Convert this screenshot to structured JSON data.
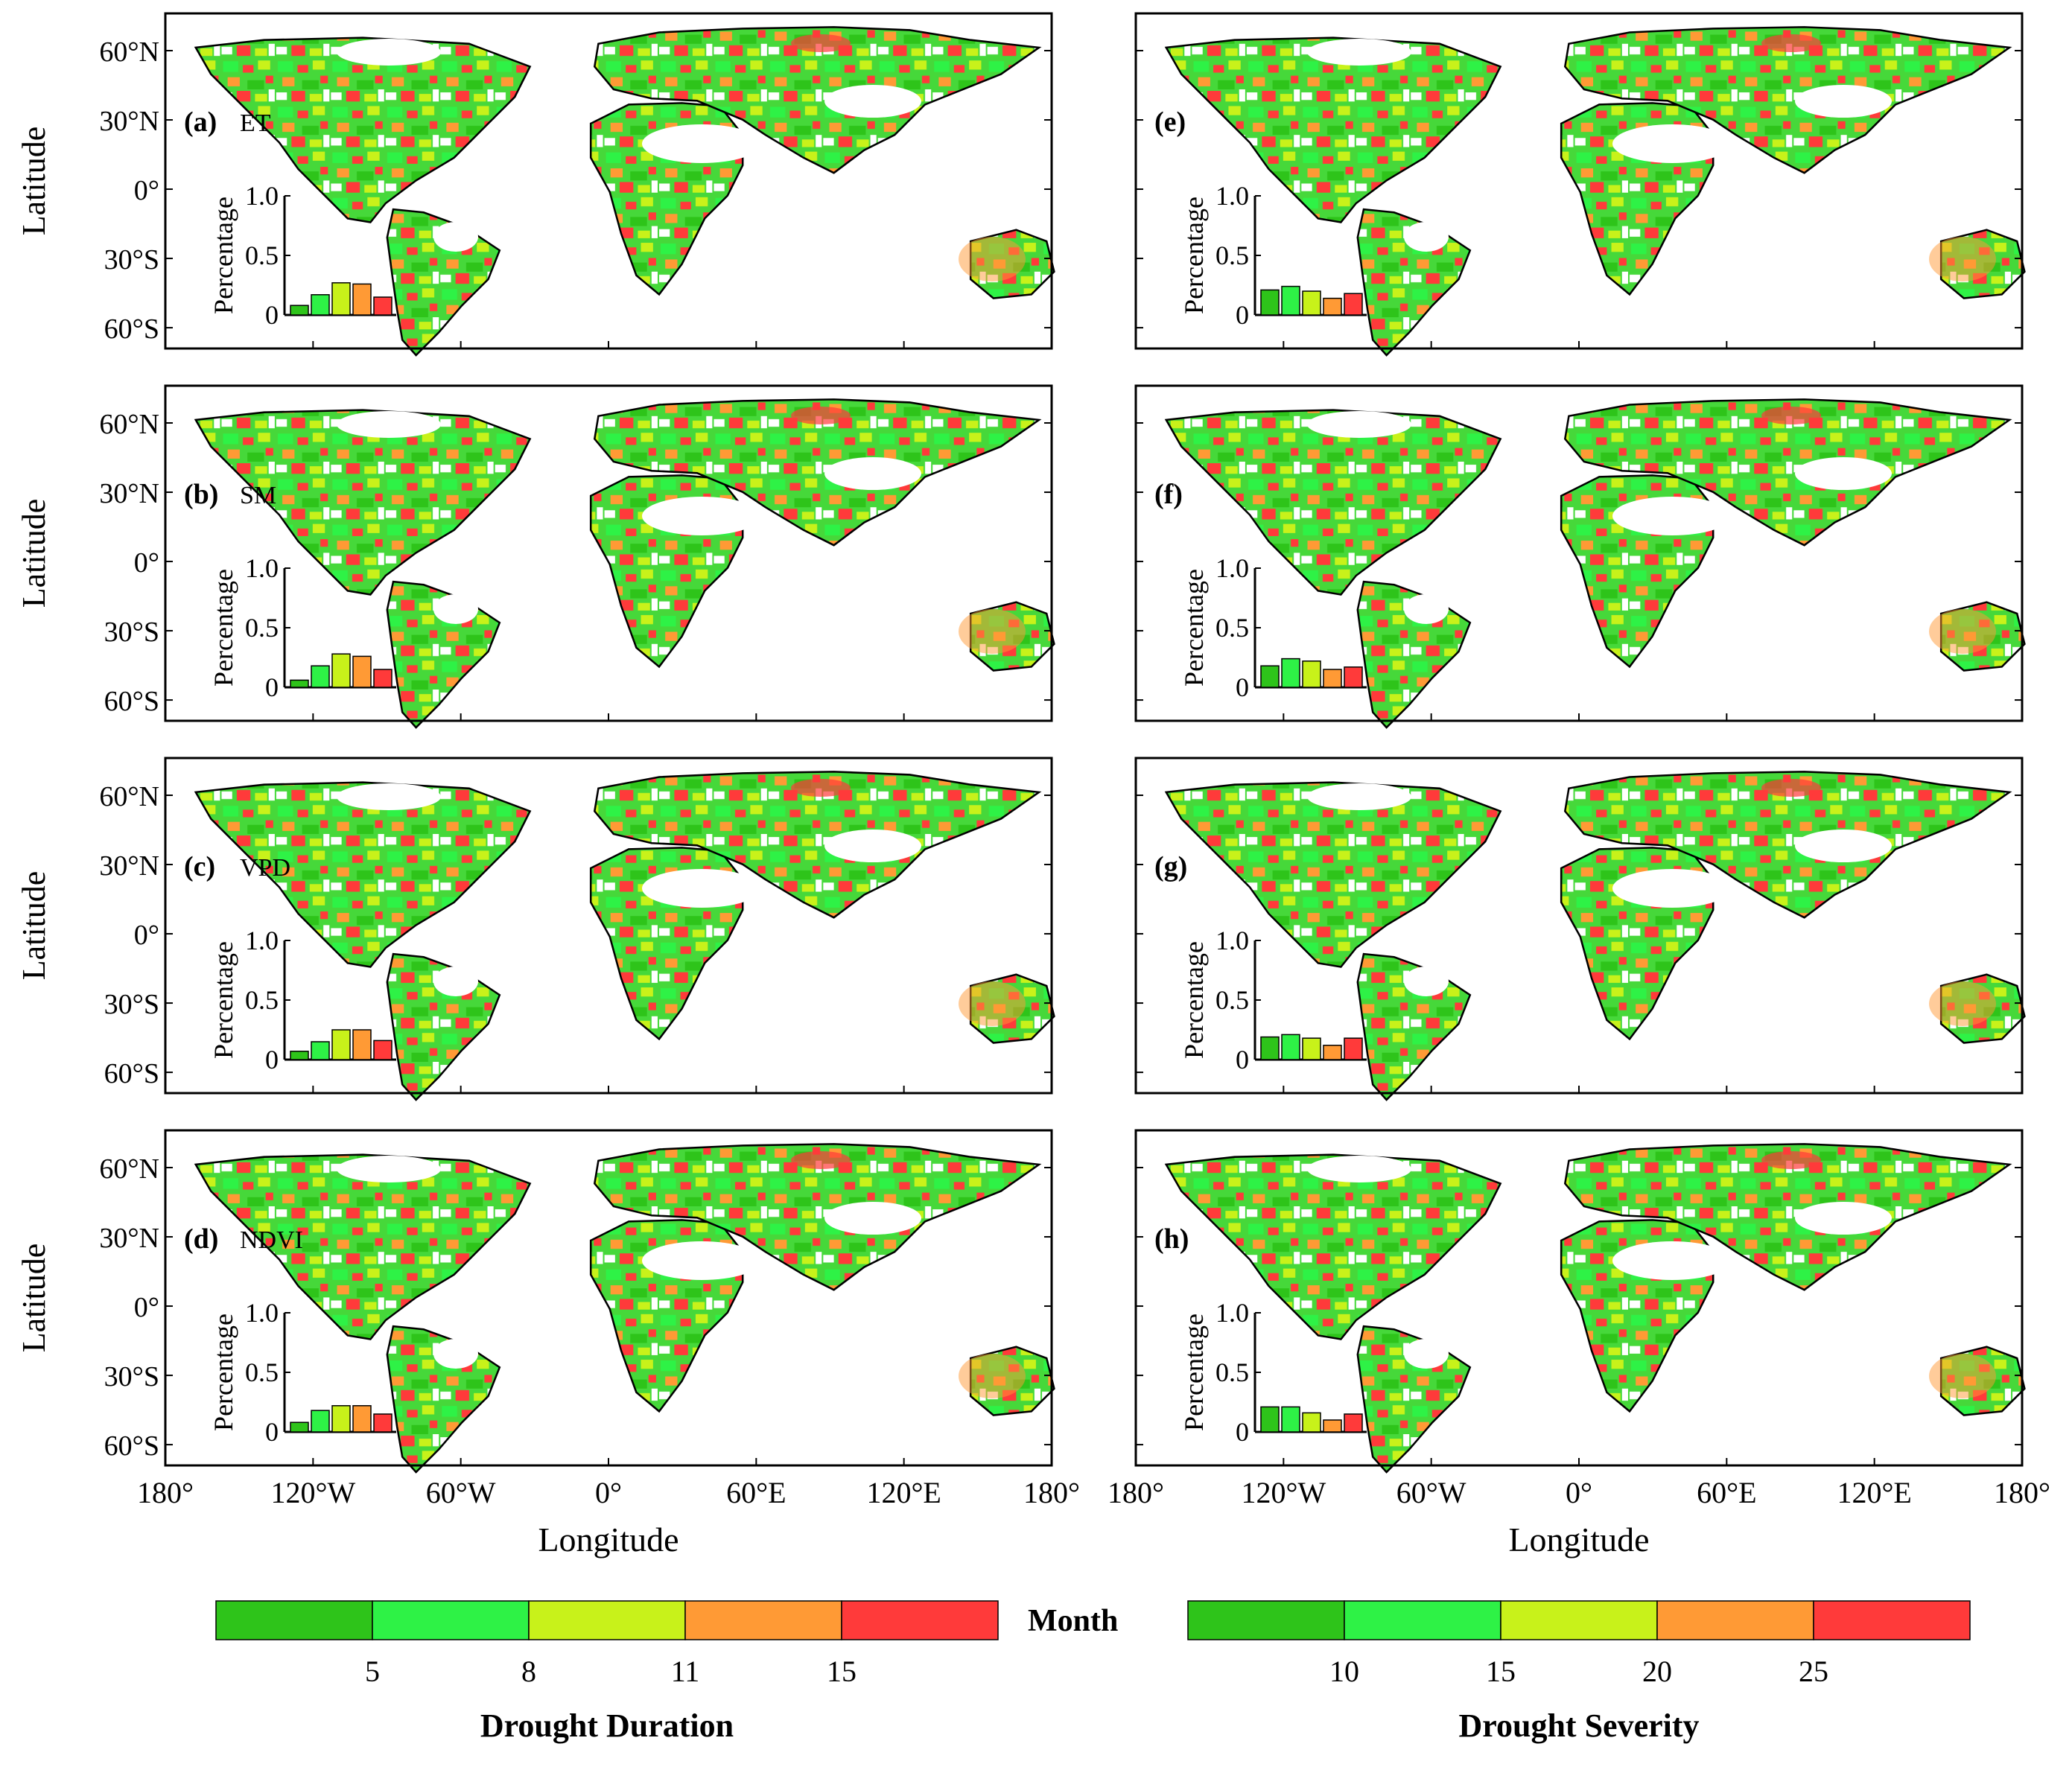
{
  "figure": {
    "duration_panels": [
      {
        "tag": "(a)",
        "variable": "ET",
        "histogram": [
          0.08,
          0.17,
          0.27,
          0.26,
          0.15
        ]
      },
      {
        "tag": "(b)",
        "variable": "SM",
        "histogram": [
          0.06,
          0.18,
          0.28,
          0.26,
          0.15
        ]
      },
      {
        "tag": "(c)",
        "variable": "VPD",
        "histogram": [
          0.07,
          0.15,
          0.25,
          0.25,
          0.16
        ]
      },
      {
        "tag": "(d)",
        "variable": "NDVI",
        "histogram": [
          0.08,
          0.18,
          0.22,
          0.22,
          0.15
        ]
      }
    ],
    "severity_panels": [
      {
        "tag": "(e)",
        "histogram": [
          0.21,
          0.24,
          0.2,
          0.14,
          0.18
        ]
      },
      {
        "tag": "(f)",
        "histogram": [
          0.18,
          0.24,
          0.22,
          0.15,
          0.17
        ]
      },
      {
        "tag": "(g)",
        "histogram": [
          0.19,
          0.21,
          0.18,
          0.12,
          0.18
        ]
      },
      {
        "tag": "(h)",
        "histogram": [
          0.21,
          0.21,
          0.16,
          0.1,
          0.15
        ]
      }
    ],
    "lat_ticks": [
      "60°N",
      "30°N",
      "0°",
      "30°S",
      "60°S"
    ],
    "lon_ticks": [
      "180°",
      "120°W",
      "60°W",
      "0°",
      "60°E",
      "120°E",
      "180°"
    ],
    "ylabel": "Latitude",
    "xlabel": "Longitude",
    "inset": {
      "ylabel": "Percentage",
      "ticks": [
        "1.0",
        "0.5",
        "0"
      ]
    },
    "duration_legend": {
      "title": "Drought Duration",
      "unit": "Month",
      "ticks": [
        "5",
        "8",
        "11",
        "15"
      ]
    },
    "severity_legend": {
      "title": "Drought Severity",
      "ticks": [
        "10",
        "15",
        "20",
        "25"
      ]
    },
    "class_colors": [
      "#2ec41a",
      "#2ef246",
      "#c8f21a",
      "#ff9a35",
      "#ff3a3a"
    ]
  }
}
